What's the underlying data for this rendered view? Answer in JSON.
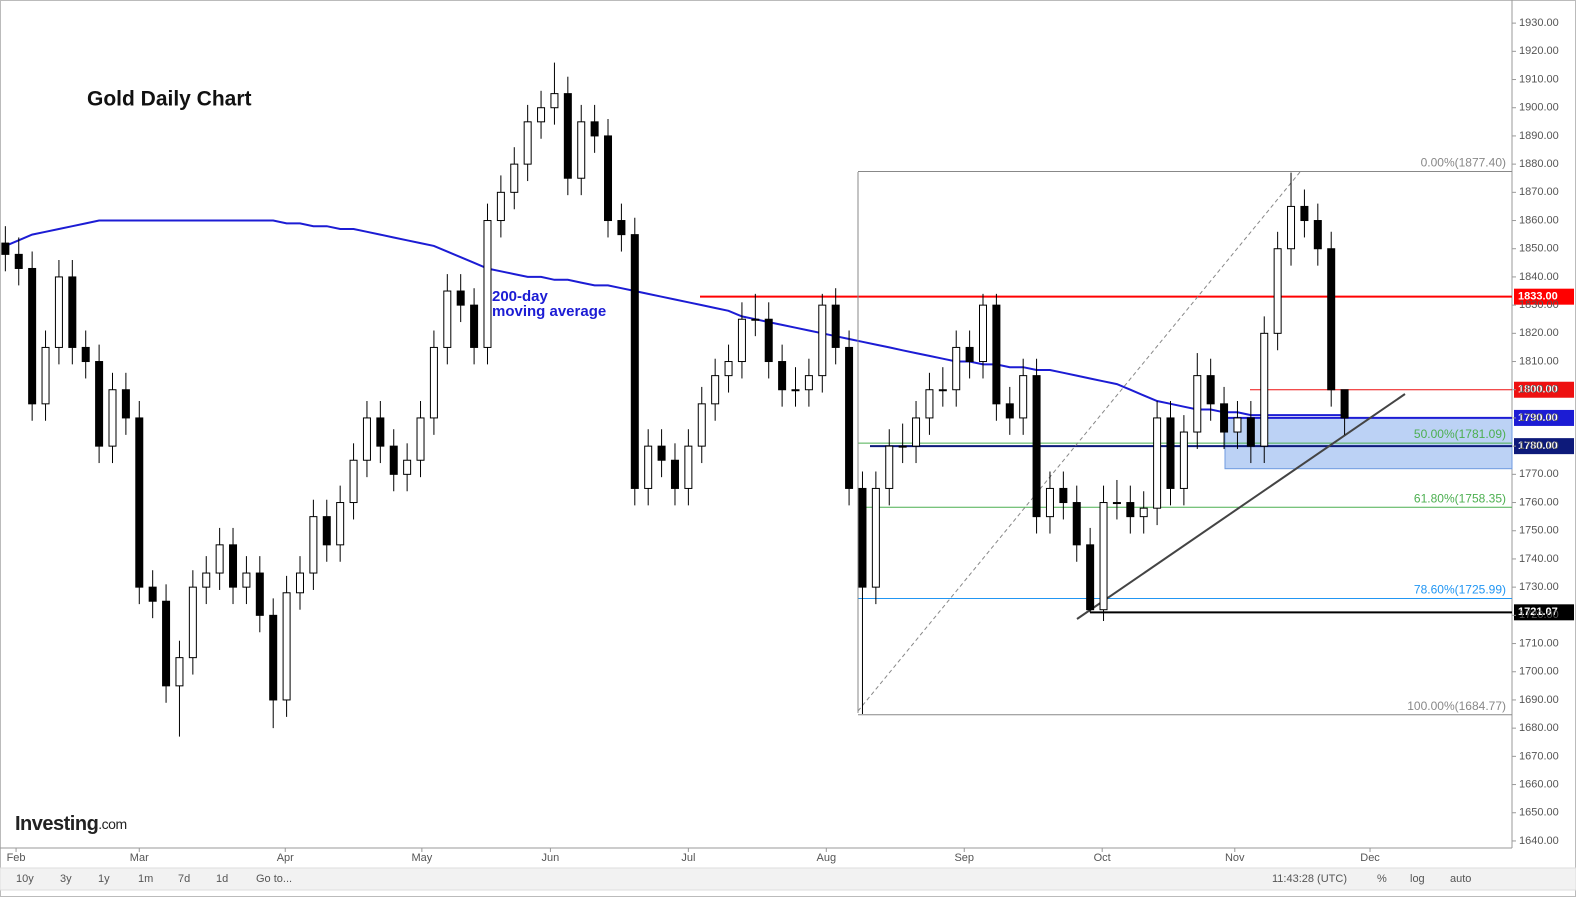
{
  "chart_data": {
    "type": "candlestick",
    "title": "Gold Daily Chart",
    "xlim": [
      -0.4,
      112.5
    ],
    "xticks": [
      {
        "value": 0.8,
        "label": "Feb"
      },
      {
        "value": 10,
        "label": "Mar"
      },
      {
        "value": 20.9,
        "label": "Apr"
      },
      {
        "value": 31.1,
        "label": "May"
      },
      {
        "value": 40.7,
        "label": "Jun"
      },
      {
        "value": 51,
        "label": "Jul"
      },
      {
        "value": 61.3,
        "label": "Aug"
      },
      {
        "value": 71.6,
        "label": "Sep"
      },
      {
        "value": 81.9,
        "label": "Oct"
      },
      {
        "value": 91.8,
        "label": "Nov"
      },
      {
        "value": 101.9,
        "label": "Dec"
      }
    ],
    "ylim": [
      1637.5,
      1938.2
    ],
    "yticks": [
      {
        "value": 1640,
        "label": "1640.00"
      },
      {
        "value": 1650,
        "label": "1650.00"
      },
      {
        "value": 1660,
        "label": "1660.00"
      },
      {
        "value": 1670,
        "label": "1670.00"
      },
      {
        "value": 1680,
        "label": "1680.00"
      },
      {
        "value": 1690,
        "label": "1690.00"
      },
      {
        "value": 1700,
        "label": "1700.00"
      },
      {
        "value": 1710,
        "label": "1710.00"
      },
      {
        "value": 1720,
        "label": "1720.00"
      },
      {
        "value": 1730,
        "label": "1730.00"
      },
      {
        "value": 1740,
        "label": "1740.00"
      },
      {
        "value": 1750,
        "label": "1750.00"
      },
      {
        "value": 1760,
        "label": "1760.00"
      },
      {
        "value": 1770,
        "label": "1770.00"
      },
      {
        "value": 1780,
        "label": "1780.00"
      },
      {
        "value": 1790,
        "label": "1790.00"
      },
      {
        "value": 1800,
        "label": "1800.00"
      },
      {
        "value": 1810,
        "label": "1810.00"
      },
      {
        "value": 1820,
        "label": "1820.00"
      },
      {
        "value": 1830,
        "label": "1830.00"
      },
      {
        "value": 1840,
        "label": "1840.00"
      },
      {
        "value": 1850,
        "label": "1850.00"
      },
      {
        "value": 1860,
        "label": "1860.00"
      },
      {
        "value": 1870,
        "label": "1870.00"
      },
      {
        "value": 1880,
        "label": "1880.00"
      },
      {
        "value": 1890,
        "label": "1890.00"
      },
      {
        "value": 1900,
        "label": "1900.00"
      },
      {
        "value": 1910,
        "label": "1910.00"
      },
      {
        "value": 1920,
        "label": "1920.00"
      },
      {
        "value": 1930,
        "label": "1930.00"
      }
    ],
    "candles": {
      "up_color": "#ffffff",
      "down_color": "#000000",
      "open": [
        1852,
        1848,
        1843,
        1795,
        1815,
        1840,
        1815,
        1810,
        1780,
        1800,
        1790,
        1730,
        1725,
        1695,
        1705,
        1730,
        1735,
        1745,
        1730,
        1735,
        1720,
        1690,
        1728,
        1735,
        1755,
        1745,
        1760,
        1775,
        1790,
        1780,
        1770,
        1775,
        1790,
        1815,
        1835,
        1830,
        1815,
        1860,
        1870,
        1880,
        1895,
        1900,
        1905,
        1875,
        1895,
        1890,
        1860,
        1855,
        1765,
        1780,
        1775,
        1765,
        1780,
        1795,
        1805,
        1810,
        1825,
        1825,
        1810,
        1800,
        1800,
        1805,
        1830,
        1815,
        1765,
        1730,
        1765,
        1780,
        1780,
        1790,
        1800,
        1800,
        1815,
        1810,
        1830,
        1795,
        1790,
        1805,
        1755,
        1765,
        1760,
        1745,
        1722,
        1760,
        1760,
        1755,
        1758,
        1790,
        1765,
        1785,
        1805,
        1795,
        1785,
        1790,
        1780,
        1820,
        1850,
        1865,
        1860,
        1850,
        1800
      ],
      "high": [
        1858,
        1854,
        1849,
        1821,
        1846,
        1846,
        1821,
        1816,
        1806,
        1806,
        1796,
        1736,
        1731,
        1711,
        1736,
        1741,
        1751,
        1751,
        1741,
        1741,
        1726,
        1734,
        1741,
        1761,
        1761,
        1766,
        1781,
        1796,
        1796,
        1786,
        1781,
        1796,
        1821,
        1841,
        1841,
        1836,
        1866,
        1876,
        1886,
        1901,
        1906,
        1916,
        1911,
        1901,
        1901,
        1896,
        1866,
        1861,
        1786,
        1786,
        1781,
        1786,
        1801,
        1811,
        1816,
        1831,
        1834,
        1831,
        1816,
        1808,
        1811,
        1834,
        1836,
        1821,
        1771,
        1771,
        1786,
        1788,
        1796,
        1806,
        1808,
        1821,
        1821,
        1834,
        1834,
        1801,
        1811,
        1811,
        1771,
        1771,
        1766,
        1751,
        1766,
        1768,
        1766,
        1764,
        1796,
        1796,
        1791,
        1813,
        1811,
        1801,
        1796,
        1796,
        1826,
        1856,
        1877,
        1871,
        1866,
        1856,
        1794
      ],
      "low": [
        1842,
        1837,
        1789,
        1789,
        1809,
        1809,
        1804,
        1774,
        1774,
        1784,
        1724,
        1719,
        1689,
        1677,
        1699,
        1724,
        1729,
        1724,
        1724,
        1714,
        1680,
        1684,
        1722,
        1729,
        1739,
        1739,
        1754,
        1769,
        1774,
        1764,
        1764,
        1769,
        1784,
        1809,
        1824,
        1809,
        1809,
        1854,
        1864,
        1874,
        1889,
        1894,
        1869,
        1869,
        1884,
        1854,
        1849,
        1759,
        1759,
        1769,
        1759,
        1759,
        1774,
        1789,
        1799,
        1804,
        1819,
        1804,
        1794,
        1794,
        1794,
        1799,
        1809,
        1759,
        1685,
        1724,
        1759,
        1774,
        1774,
        1784,
        1794,
        1794,
        1804,
        1804,
        1789,
        1784,
        1784,
        1749,
        1749,
        1754,
        1739,
        1721,
        1718,
        1754,
        1749,
        1749,
        1752,
        1759,
        1759,
        1779,
        1789,
        1779,
        1779,
        1774,
        1774,
        1814,
        1844,
        1854,
        1844,
        1794,
        1784
      ],
      "close": [
        1848,
        1843,
        1795,
        1815,
        1840,
        1815,
        1810,
        1780,
        1800,
        1790,
        1730,
        1725,
        1695,
        1705,
        1730,
        1735,
        1745,
        1730,
        1735,
        1720,
        1690,
        1728,
        1735,
        1755,
        1745,
        1760,
        1775,
        1790,
        1780,
        1770,
        1775,
        1790,
        1815,
        1835,
        1830,
        1815,
        1860,
        1870,
        1880,
        1895,
        1900,
        1905,
        1875,
        1895,
        1890,
        1860,
        1855,
        1765,
        1780,
        1775,
        1765,
        1780,
        1795,
        1805,
        1810,
        1825,
        1825,
        1810,
        1800,
        1800,
        1805,
        1830,
        1815,
        1765,
        1730,
        1765,
        1780,
        1780,
        1790,
        1800,
        1800,
        1815,
        1810,
        1830,
        1795,
        1790,
        1805,
        1755,
        1765,
        1760,
        1745,
        1722,
        1760,
        1760,
        1755,
        1758,
        1790,
        1765,
        1785,
        1805,
        1795,
        1785,
        1790,
        1780,
        1820,
        1850,
        1865,
        1860,
        1850,
        1800,
        1790
      ]
    },
    "ma": {
      "label_lines": [
        "200-day",
        "moving average"
      ],
      "color": "#1c1cd4",
      "values": [
        1851,
        1853,
        1855,
        1856,
        1857,
        1858,
        1859,
        1860,
        1860,
        1860,
        1860,
        1860,
        1860,
        1860,
        1860,
        1860,
        1860,
        1860,
        1860,
        1860,
        1860,
        1859,
        1859,
        1858,
        1858,
        1857,
        1857,
        1856,
        1855,
        1854,
        1853,
        1852,
        1851,
        1849,
        1847,
        1845,
        1843,
        1842,
        1841,
        1840,
        1840,
        1839,
        1839,
        1838,
        1837,
        1837,
        1836,
        1835,
        1834,
        1833,
        1832,
        1831,
        1830,
        1829,
        1828,
        1826,
        1825,
        1824,
        1823,
        1822,
        1821,
        1820,
        1819,
        1818,
        1817,
        1816,
        1815,
        1814,
        1813,
        1812,
        1811,
        1810,
        1810,
        1809,
        1809,
        1808,
        1808,
        1807,
        1807,
        1806,
        1805,
        1804,
        1803,
        1802,
        1800,
        1798,
        1796,
        1795,
        1794,
        1793,
        1793,
        1792,
        1792,
        1791,
        1791,
        1791,
        1791,
        1791,
        1791,
        1791,
        1791
      ]
    },
    "levels": [
      {
        "value": 1833,
        "label": "1833.00",
        "color": "#ff0000"
      },
      {
        "value": 1800,
        "label": "1800.00",
        "color": "#ee1111"
      },
      {
        "value": 1790,
        "label": "1790.00",
        "color": "#1c1cd4"
      },
      {
        "value": 1780,
        "label": "1780.00",
        "color": "#0d1a7a"
      },
      {
        "value": 1721.07,
        "label": "1721.07",
        "color": "#000000"
      }
    ],
    "zone": {
      "from": 1772,
      "to": 1790,
      "color": "#8fb4ef"
    },
    "fib": [
      {
        "value": 1877.4,
        "label": "0.00%(1877.40)",
        "color": "#888888"
      },
      {
        "value": 1781.09,
        "label": "50.00%(1781.09)",
        "color": "#4caf50"
      },
      {
        "value": 1758.35,
        "label": "61.80%(1758.35)",
        "color": "#4caf50"
      },
      {
        "value": 1725.99,
        "label": "78.60%(1725.99)",
        "color": "#2196f3"
      },
      {
        "value": 1684.77,
        "label": "100.00%(1684.77)",
        "color": "#888888"
      }
    ]
  },
  "logo": {
    "name": "Investing",
    "suffix": ".com"
  },
  "toolbar": {
    "ranges": [
      "10y",
      "3y",
      "1y",
      "1m",
      "7d",
      "1d",
      "Go to..."
    ],
    "time": "11:43:28 (UTC)",
    "options": [
      "%",
      "log",
      "auto"
    ]
  }
}
